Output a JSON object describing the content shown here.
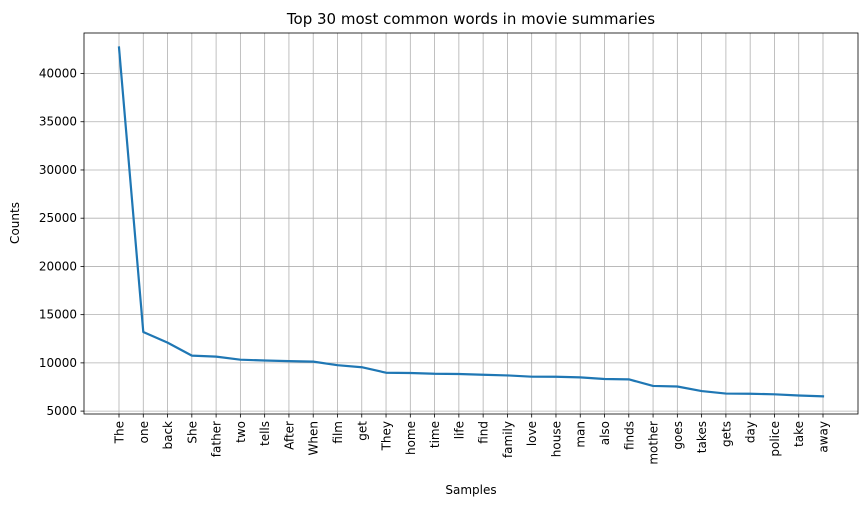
{
  "chart_data": {
    "type": "line",
    "title": "Top 30 most common words in movie summaries",
    "xlabel": "Samples",
    "ylabel": "Counts",
    "categories": [
      "The",
      "one",
      "back",
      "She",
      "father",
      "two",
      "tells",
      "After",
      "When",
      "film",
      "get",
      "They",
      "home",
      "time",
      "life",
      "find",
      "family",
      "love",
      "house",
      "man",
      "also",
      "finds",
      "mother",
      "goes",
      "takes",
      "gets",
      "day",
      "police",
      "take",
      "away"
    ],
    "values": [
      42700,
      13200,
      12100,
      10750,
      10650,
      10330,
      10250,
      10180,
      10130,
      9760,
      9550,
      8980,
      8950,
      8870,
      8850,
      8770,
      8700,
      8570,
      8560,
      8500,
      8330,
      8290,
      7610,
      7550,
      7080,
      6820,
      6800,
      6740,
      6620,
      6530
    ],
    "yticks": [
      5000,
      10000,
      15000,
      20000,
      25000,
      30000,
      35000,
      40000
    ],
    "ylim": [
      4700,
      44200
    ],
    "grid": true,
    "line_color": "#1f77b4"
  }
}
